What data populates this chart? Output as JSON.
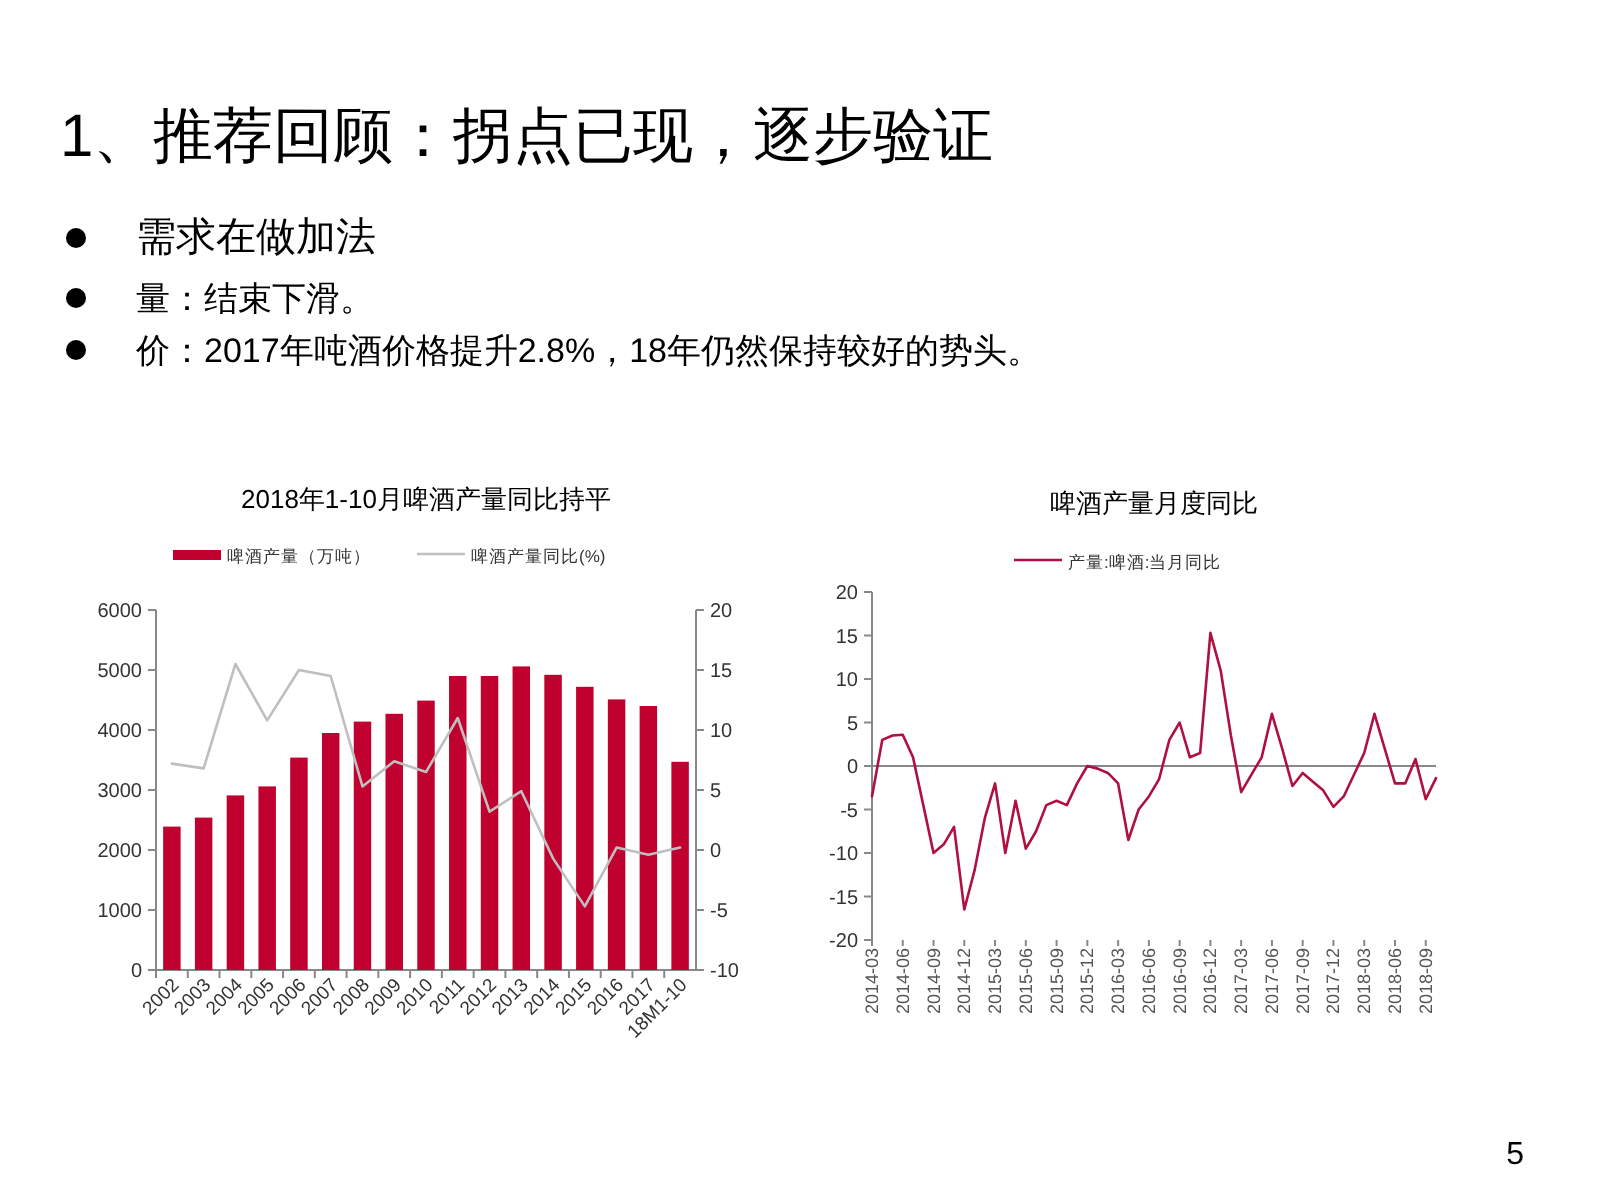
{
  "chart_data": [
    {
      "type": "other",
      "title": "1、推荐回顾：拐点已现，逐步验证",
      "annotations": [
        "需求在做加法",
        "量：结束下滑。",
        "价：2017年吨酒价格提升2.8%，18年仍然保持较好的势头。",
        "5"
      ]
    },
    {
      "type": "bar",
      "title": "2018年1-10月啤酒产量同比持平",
      "categories": [
        "2002",
        "2003",
        "2004",
        "2005",
        "2006",
        "2007",
        "2008",
        "2009",
        "2010",
        "2011",
        "2012",
        "2013",
        "2014",
        "2015",
        "2016",
        "2017",
        "18M1-10"
      ],
      "series": [
        {
          "name": "啤酒产量（万吨）",
          "color": "#c0002f",
          "values": [
            2390,
            2540,
            2910,
            3060,
            3540,
            3950,
            4140,
            4270,
            4490,
            4900,
            4900,
            5060,
            4920,
            4720,
            4510,
            4400,
            3470
          ]
        },
        {
          "name": "啤酒产量同比(%)",
          "type": "line",
          "axis": "y2",
          "color": "#bfbfbf",
          "values": [
            7.2,
            6.8,
            15.5,
            10.8,
            15,
            14.5,
            5.3,
            7.4,
            6.5,
            11,
            3.2,
            4.9,
            -0.7,
            -4.7,
            0.2,
            -0.4,
            0.2
          ]
        }
      ],
      "ylim": [
        0,
        6000
      ],
      "yticks": [
        0,
        1000,
        2000,
        3000,
        4000,
        5000,
        6000
      ],
      "y2lim": [
        -10,
        20
      ],
      "y2ticks": [
        -10,
        -5,
        0,
        5,
        10,
        15,
        20
      ],
      "legend": "top"
    },
    {
      "type": "line",
      "title": "啤酒产量月度同比",
      "categories": [
        "2014-03",
        null,
        null,
        "2014-06",
        null,
        null,
        "2014-09",
        null,
        null,
        "2014-12",
        null,
        null,
        "2015-03",
        null,
        null,
        "2015-06",
        null,
        null,
        "2015-09",
        null,
        null,
        "2015-12",
        null,
        null,
        "2016-03",
        null,
        null,
        "2016-06",
        null,
        null,
        "2016-09",
        null,
        null,
        "2016-12",
        null,
        null,
        "2017-03",
        null,
        null,
        "2017-06",
        null,
        null,
        "2017-09",
        null,
        null,
        "2017-12",
        null,
        null,
        "2018-03",
        null,
        null,
        "2018-06",
        null,
        null,
        "2018-09",
        null
      ],
      "series": [
        {
          "name": "产量:啤酒:当月同比",
          "color": "#b0103f",
          "values": [
            -3.5,
            3.0,
            3.5,
            3.6,
            1.0,
            -4.5,
            -10,
            -9,
            -7,
            -16.5,
            -12,
            -6,
            -2,
            -10,
            -4,
            -9.5,
            -7.5,
            -4.5,
            -4,
            -4.5,
            -2,
            0,
            -0.3,
            -0.8,
            -2,
            -8.5,
            -5,
            -3.5,
            -1.5,
            3,
            5,
            1,
            1.5,
            15.3,
            11,
            3.5,
            -3,
            -1,
            1,
            6,
            2,
            -2.3,
            -0.8,
            -1.8,
            -2.8,
            -4.7,
            -3.5,
            -1,
            1.5,
            6,
            2,
            -2,
            -2,
            0.8,
            -3.8,
            -1.4
          ]
        }
      ],
      "ylim": [
        -20,
        20
      ],
      "yticks": [
        -20,
        -15,
        -10,
        -5,
        0,
        5,
        10,
        15,
        20
      ],
      "legend": "top"
    }
  ]
}
